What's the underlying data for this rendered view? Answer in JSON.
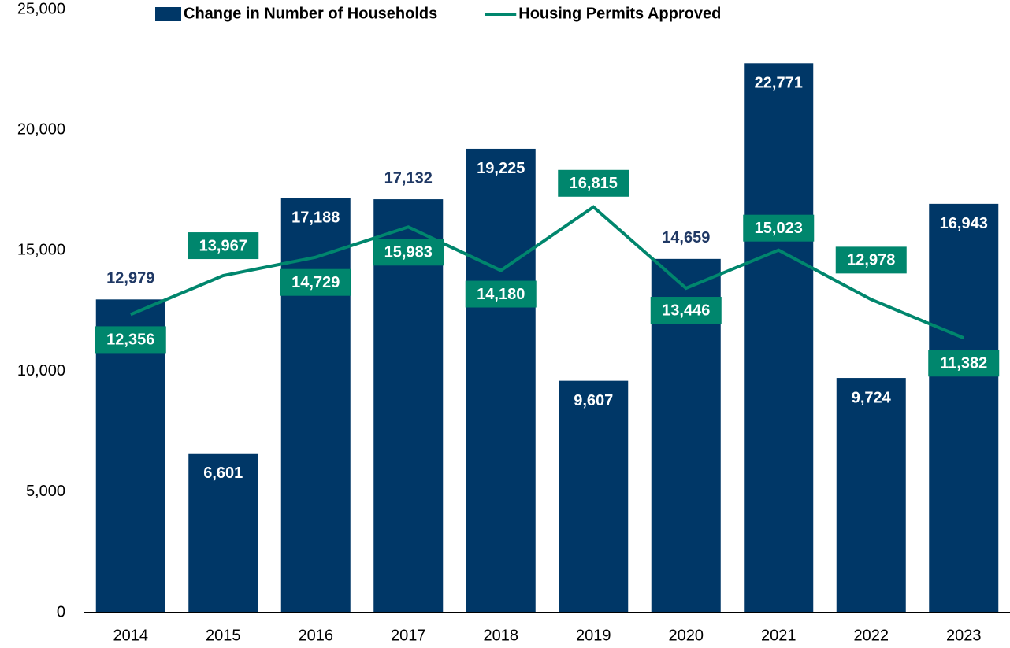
{
  "chart_data": {
    "type": "bar_line",
    "categories": [
      "2014",
      "2015",
      "2016",
      "2017",
      "2018",
      "2019",
      "2020",
      "2021",
      "2022",
      "2023"
    ],
    "series": [
      {
        "name": "Change in Number of Households",
        "type": "bar",
        "color": "#003767",
        "values": [
          12979,
          6601,
          17188,
          17132,
          19225,
          9607,
          14659,
          22771,
          9724,
          16943
        ],
        "value_labels": [
          "12,979",
          "6,601",
          "17,188",
          "17,132",
          "19,225",
          "9,607",
          "14,659",
          "22,771",
          "9,724",
          "16,943"
        ]
      },
      {
        "name": "Housing Permits Approved",
        "type": "line",
        "color": "#00866d",
        "values": [
          12356,
          13967,
          14729,
          15983,
          14180,
          16815,
          13446,
          15023,
          12978,
          11382
        ],
        "value_labels": [
          "12,356",
          "13,967",
          "14,729",
          "15,983",
          "14,180",
          "16,815",
          "13,446",
          "15,023",
          "12,978",
          "11,382"
        ]
      }
    ],
    "ylim": [
      0,
      25000
    ],
    "yticks": [
      0,
      {
        "value": 5000,
        "label": "5,000"
      },
      {
        "value": 10000,
        "label": "10,000"
      },
      {
        "value": 15000,
        "label": "15,000"
      },
      {
        "value": 20000,
        "label": "20,000"
      },
      {
        "value": 25000,
        "label": "25,000"
      }
    ],
    "grid": false,
    "legend": "top"
  }
}
